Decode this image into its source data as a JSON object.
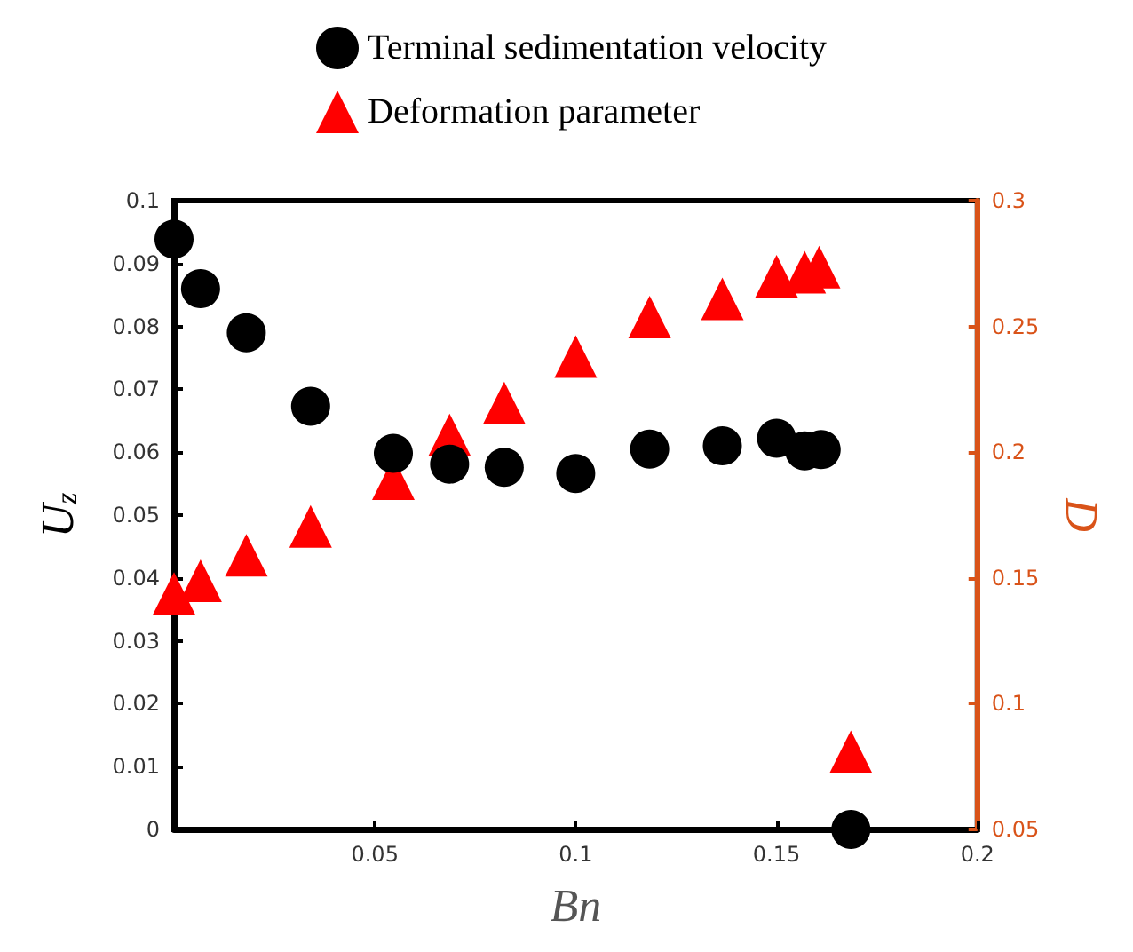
{
  "chart_data": {
    "type": "scatter",
    "xlabel": "Bn",
    "ylabel": "U$_{z}$",
    "y2label": "D",
    "xlim": [
      0,
      0.2
    ],
    "xticks": [
      {
        "value": 0,
        "label": null
      },
      0.05,
      0.1,
      0.15,
      0.2
    ],
    "ylim": [
      0,
      0.1
    ],
    "yticks": [
      0,
      0.01,
      0.02,
      0.03,
      0.04,
      0.05,
      0.06,
      0.07,
      0.08,
      0.09,
      0.1
    ],
    "y2lim": [
      0.05,
      0.3
    ],
    "y2ticks": [
      0.05,
      0.1,
      0.15,
      0.2,
      0.25,
      0.3
    ],
    "grid": false,
    "legend": "top",
    "series": [
      {
        "name": "Terminal sedimentation velocity",
        "color": "#000000",
        "marker": "circle",
        "x": [
          0,
          0.0066,
          0.018,
          0.034,
          0.0546,
          0.0686,
          0.0822,
          0.1,
          0.1184,
          0.1365,
          0.15,
          0.157,
          0.1611,
          0.1685
        ],
        "values": [
          0.0939,
          0.086,
          0.079,
          0.0673,
          0.0598,
          0.0581,
          0.0576,
          0.0566,
          0.0605,
          0.061,
          0.0622,
          0.0602,
          0.0604,
          0
        ]
      },
      {
        "name": "Deformation parameter",
        "color": "#ff0000",
        "marker": "triangle",
        "axis": "y2",
        "x": [
          0,
          0.0066,
          0.018,
          0.034,
          0.0546,
          0.0686,
          0.0822,
          0.1,
          0.1184,
          0.1365,
          0.15,
          0.157,
          0.1606,
          0.1685
        ],
        "values": [
          0.1438,
          0.1489,
          0.159,
          0.1705,
          0.1895,
          0.2069,
          0.2196,
          0.238,
          0.2537,
          0.261,
          0.27,
          0.2716,
          0.2736,
          0.0809
        ]
      }
    ]
  }
}
